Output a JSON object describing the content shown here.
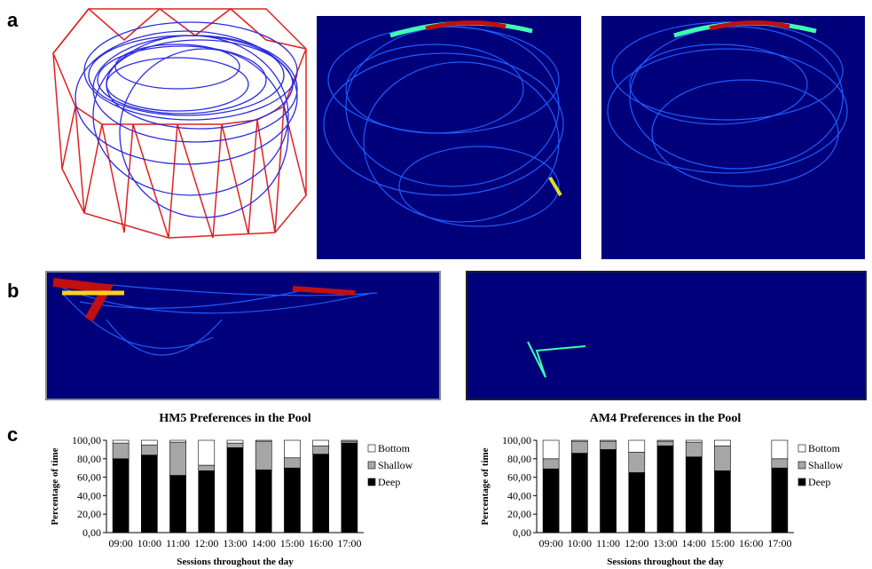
{
  "panel_labels": [
    "a",
    "b",
    "c"
  ],
  "chart_data": [
    {
      "type": "stacked-bar",
      "title": "HM5 Preferences in the Pool",
      "x_label": "Sessions throughout the day",
      "y_label": "Percentage of time",
      "categories": [
        "09:00",
        "10:00",
        "11:00",
        "12:00",
        "13:00",
        "14:00",
        "15:00",
        "16:00",
        "17:00"
      ],
      "series": [
        {
          "name": "Deep",
          "color": "#000000",
          "values": [
            80,
            84,
            62,
            67,
            92,
            68,
            70,
            85,
            97
          ]
        },
        {
          "name": "Shallow",
          "color": "#a6a6a6",
          "values": [
            17,
            11,
            36,
            6,
            5,
            31,
            11,
            9,
            2
          ]
        },
        {
          "name": "Bottom",
          "color": "#ffffff",
          "values": [
            3,
            5,
            2,
            27,
            3,
            1,
            19,
            6,
            1
          ]
        }
      ],
      "ylim": [
        0,
        100
      ],
      "yticks": [
        {
          "value": 0,
          "label": "0,00"
        },
        {
          "value": 20,
          "label": "20,00"
        },
        {
          "value": 40,
          "label": "40,00"
        },
        {
          "value": 60,
          "label": "60,00"
        },
        {
          "value": 80,
          "label": "80,00"
        },
        {
          "value": 100,
          "label": "100,00"
        }
      ]
    },
    {
      "type": "stacked-bar",
      "title": "AM4 Preferences in the Pool",
      "x_label": "Sessions throughout the day",
      "y_label": "Percentage of time",
      "categories": [
        "09:00",
        "10:00",
        "11:00",
        "12:00",
        "13:00",
        "14:00",
        "15:00",
        "16:00",
        "17:00"
      ],
      "series": [
        {
          "name": "Deep",
          "color": "#000000",
          "values": [
            69,
            86,
            90,
            65,
            94,
            82,
            67,
            null,
            70
          ]
        },
        {
          "name": "Shallow",
          "color": "#a6a6a6",
          "values": [
            11,
            13,
            9,
            22,
            5,
            16,
            27,
            null,
            10
          ]
        },
        {
          "name": "Bottom",
          "color": "#ffffff",
          "values": [
            20,
            1,
            1,
            13,
            1,
            2,
            6,
            null,
            20
          ]
        }
      ],
      "ylim": [
        0,
        100
      ],
      "yticks": [
        {
          "value": 0,
          "label": "0,00"
        },
        {
          "value": 20,
          "label": "20,00"
        },
        {
          "value": 40,
          "label": "40,00"
        },
        {
          "value": 60,
          "label": "60,00"
        },
        {
          "value": 80,
          "label": "80,00"
        },
        {
          "value": 100,
          "label": "100,00"
        }
      ]
    }
  ]
}
